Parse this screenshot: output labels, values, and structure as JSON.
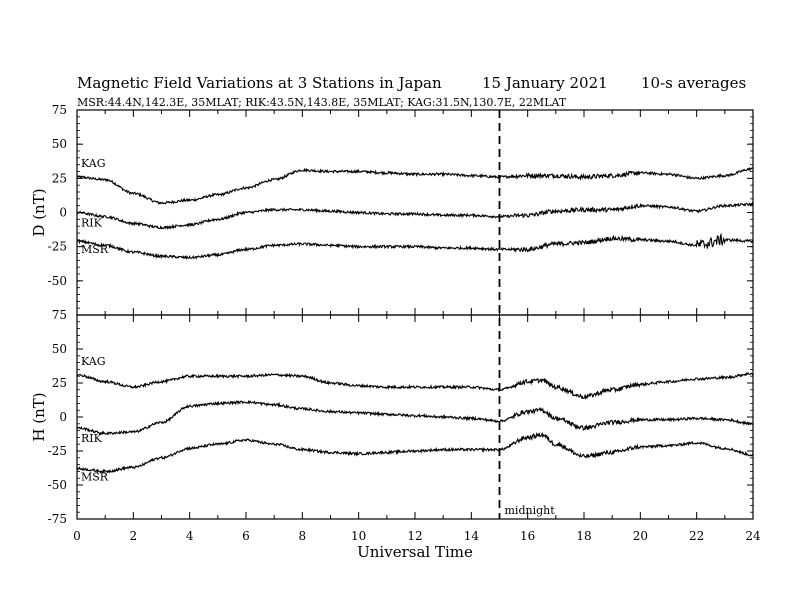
{
  "title": "Magnetic Field Variations at 3 Stations in Japan",
  "date": "15 January  2021",
  "averaging": "10-s averages",
  "subtitle": "MSR:44.4N,142.3E, 35MLAT;  RIK:43.5N,143.8E, 35MLAT;  KAG:31.5N,130.7E, 22MLAT",
  "chart_data": {
    "type": "line",
    "xlabel": "Universal Time",
    "xlim": [
      0,
      24
    ],
    "x_ticks": [
      0,
      2,
      4,
      6,
      8,
      10,
      12,
      14,
      16,
      18,
      20,
      22,
      24
    ],
    "marker": {
      "x": 15,
      "label": "midnight",
      "style": "dashed"
    },
    "grid": false,
    "panels": [
      {
        "ylabel": "D (nT)",
        "ylim": [
          -75,
          75
        ],
        "y_ticks": [
          75,
          50,
          25,
          0,
          -25,
          -50,
          -75
        ],
        "series": [
          {
            "name": "KAG",
            "x": [
              0,
              1,
              2,
              3,
              4,
              5,
              6,
              7,
              8,
              9,
              10,
              11,
              12,
              13,
              14,
              15,
              16,
              17,
              18,
              19,
              20,
              21,
              22,
              23,
              24
            ],
            "y": [
              26,
              24,
              14,
              7,
              9,
              13,
              18,
              24,
              31,
              30,
              30,
              29,
              28,
              28,
              27,
              26,
              27,
              27,
              26,
              27,
              29,
              28,
              25,
              27,
              32
            ]
          },
          {
            "name": "RIK",
            "x": [
              0,
              1,
              2,
              3,
              4,
              5,
              6,
              7,
              8,
              9,
              10,
              11,
              12,
              13,
              14,
              15,
              16,
              17,
              18,
              19,
              20,
              21,
              22,
              23,
              24
            ],
            "y": [
              0,
              -3,
              -8,
              -11,
              -9,
              -5,
              0,
              2,
              2,
              1,
              0,
              -1,
              -1,
              -2,
              -2,
              -3,
              -2,
              1,
              2,
              2,
              5,
              4,
              1,
              5,
              6
            ]
          },
          {
            "name": "MSR",
            "x": [
              0,
              1,
              2,
              3,
              4,
              5,
              6,
              7,
              8,
              9,
              10,
              11,
              12,
              13,
              14,
              15,
              16,
              17,
              18,
              19,
              20,
              21,
              22,
              23,
              24
            ],
            "y": [
              -21,
              -24,
              -29,
              -32,
              -33,
              -31,
              -27,
              -24,
              -23,
              -24,
              -25,
              -25,
              -25,
              -26,
              -26,
              -27,
              -27,
              -23,
              -22,
              -19,
              -20,
              -21,
              -24,
              -20,
              -21
            ]
          }
        ]
      },
      {
        "ylabel": "H (nT)",
        "ylim": [
          -75,
          75
        ],
        "y_ticks": [
          75,
          50,
          25,
          0,
          -25,
          -50,
          -75
        ],
        "series": [
          {
            "name": "KAG",
            "x": [
              0,
              1,
              2,
              3,
              4,
              5,
              6,
              7,
              8,
              9,
              10,
              11,
              12,
              13,
              14,
              15,
              16,
              16.5,
              17,
              18,
              19,
              20,
              21,
              22,
              23,
              24
            ],
            "y": [
              31,
              26,
              22,
              26,
              30,
              30,
              30,
              31,
              30,
              25,
              23,
              22,
              22,
              22,
              22,
              20,
              26,
              27,
              22,
              15,
              20,
              24,
              26,
              28,
              29,
              32
            ]
          },
          {
            "name": "RIK",
            "x": [
              0,
              1,
              2,
              3,
              4,
              5,
              6,
              7,
              8,
              9,
              10,
              11,
              12,
              13,
              14,
              15,
              16,
              16.5,
              17,
              18,
              19,
              20,
              21,
              22,
              23,
              24
            ],
            "y": [
              -8,
              -12,
              -11,
              -4,
              8,
              10,
              11,
              9,
              6,
              4,
              3,
              2,
              1,
              0,
              -1,
              -3,
              4,
              5,
              -1,
              -8,
              -4,
              -2,
              -2,
              -1,
              -2,
              -5
            ]
          },
          {
            "name": "MSR",
            "x": [
              0,
              1,
              2,
              3,
              4,
              5,
              6,
              7,
              8,
              9,
              10,
              11,
              12,
              13,
              14,
              15,
              16,
              16.5,
              17,
              18,
              19,
              20,
              21,
              22,
              23,
              24
            ],
            "y": [
              -38,
              -40,
              -37,
              -30,
              -23,
              -20,
              -17,
              -20,
              -24,
              -26,
              -27,
              -26,
              -25,
              -24,
              -24,
              -24,
              -15,
              -13,
              -20,
              -29,
              -26,
              -22,
              -21,
              -19,
              -23,
              -28
            ]
          }
        ]
      }
    ]
  }
}
